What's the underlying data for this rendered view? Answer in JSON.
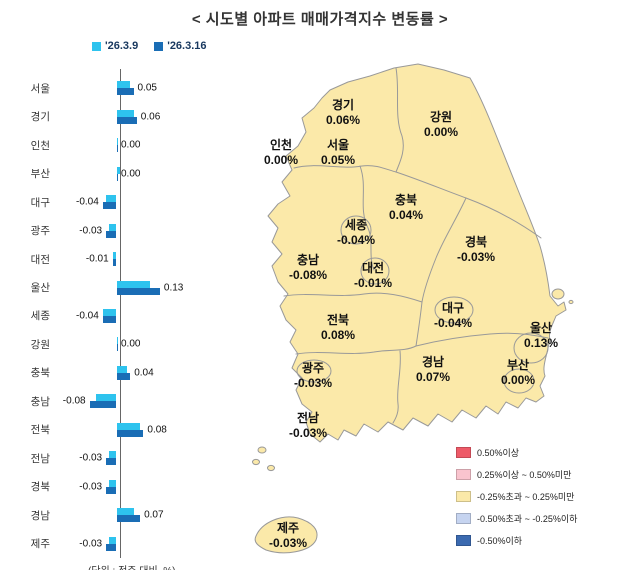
{
  "title": "< 시도별 아파트 매매가격지수 변동률 >",
  "chart_data": {
    "type": "bar",
    "orientation": "horizontal",
    "title": "시도별 아파트 매매가격지수 변동률",
    "note": "(단위 : 전주 대비, %)",
    "xlim": [
      -0.1,
      0.15
    ],
    "grid": false,
    "legend_position": "top-left",
    "categories": [
      "서울",
      "경기",
      "인천",
      "부산",
      "대구",
      "광주",
      "대전",
      "울산",
      "세종",
      "강원",
      "충북",
      "충남",
      "전북",
      "전남",
      "경북",
      "경남",
      "제주"
    ],
    "series": [
      {
        "name": "'26.3.9",
        "color": "#2EC3EE",
        "values": [
          0.04,
          0.05,
          0.0,
          0.01,
          -0.03,
          -0.02,
          -0.01,
          0.1,
          -0.04,
          0.0,
          0.03,
          -0.06,
          0.07,
          -0.02,
          -0.02,
          0.05,
          -0.02
        ]
      },
      {
        "name": "'26.3.16",
        "color": "#1A6DB5",
        "values": [
          0.05,
          0.06,
          0.0,
          0.0,
          -0.04,
          -0.03,
          -0.01,
          0.13,
          -0.04,
          0.0,
          0.04,
          -0.08,
          0.08,
          -0.03,
          -0.03,
          0.07,
          -0.03
        ]
      }
    ],
    "data_labels": [
      "0.05",
      "0.06",
      "0.00",
      "0.00",
      "-0.04",
      "-0.03",
      "-0.01",
      "0.13",
      "-0.04",
      "0.00",
      "0.04",
      "-0.08",
      "0.08",
      "-0.03",
      "-0.03",
      "0.07",
      "-0.03"
    ]
  },
  "map": {
    "fill_color": "#FBE9A9",
    "border_color": "#999999",
    "regions": [
      {
        "name": "경기",
        "value": "0.06%"
      },
      {
        "name": "강원",
        "value": "0.00%"
      },
      {
        "name": "인천",
        "value": "0.00%"
      },
      {
        "name": "서울",
        "value": "0.05%"
      },
      {
        "name": "충북",
        "value": "0.04%"
      },
      {
        "name": "세종",
        "value": "-0.04%"
      },
      {
        "name": "충남",
        "value": "-0.08%"
      },
      {
        "name": "대전",
        "value": "-0.01%"
      },
      {
        "name": "경북",
        "value": "-0.03%"
      },
      {
        "name": "전북",
        "value": "0.08%"
      },
      {
        "name": "대구",
        "value": "-0.04%"
      },
      {
        "name": "울산",
        "value": "0.13%"
      },
      {
        "name": "광주",
        "value": "-0.03%"
      },
      {
        "name": "경남",
        "value": "0.07%"
      },
      {
        "name": "부산",
        "value": "0.00%"
      },
      {
        "name": "전남",
        "value": "-0.03%"
      },
      {
        "name": "제주",
        "value": "-0.03%"
      }
    ],
    "legend": [
      {
        "label": "0.50%이상",
        "color": "#EE5A68"
      },
      {
        "label": "0.25%이상 ~ 0.50%미만",
        "color": "#F9C4CE"
      },
      {
        "label": "-0.25%초과 ~ 0.25%미만",
        "color": "#FBE9A9"
      },
      {
        "label": "-0.50%초과 ~ -0.25%이하",
        "color": "#C6D4F0"
      },
      {
        "label": "-0.50%이하",
        "color": "#3B6AB0"
      }
    ]
  }
}
